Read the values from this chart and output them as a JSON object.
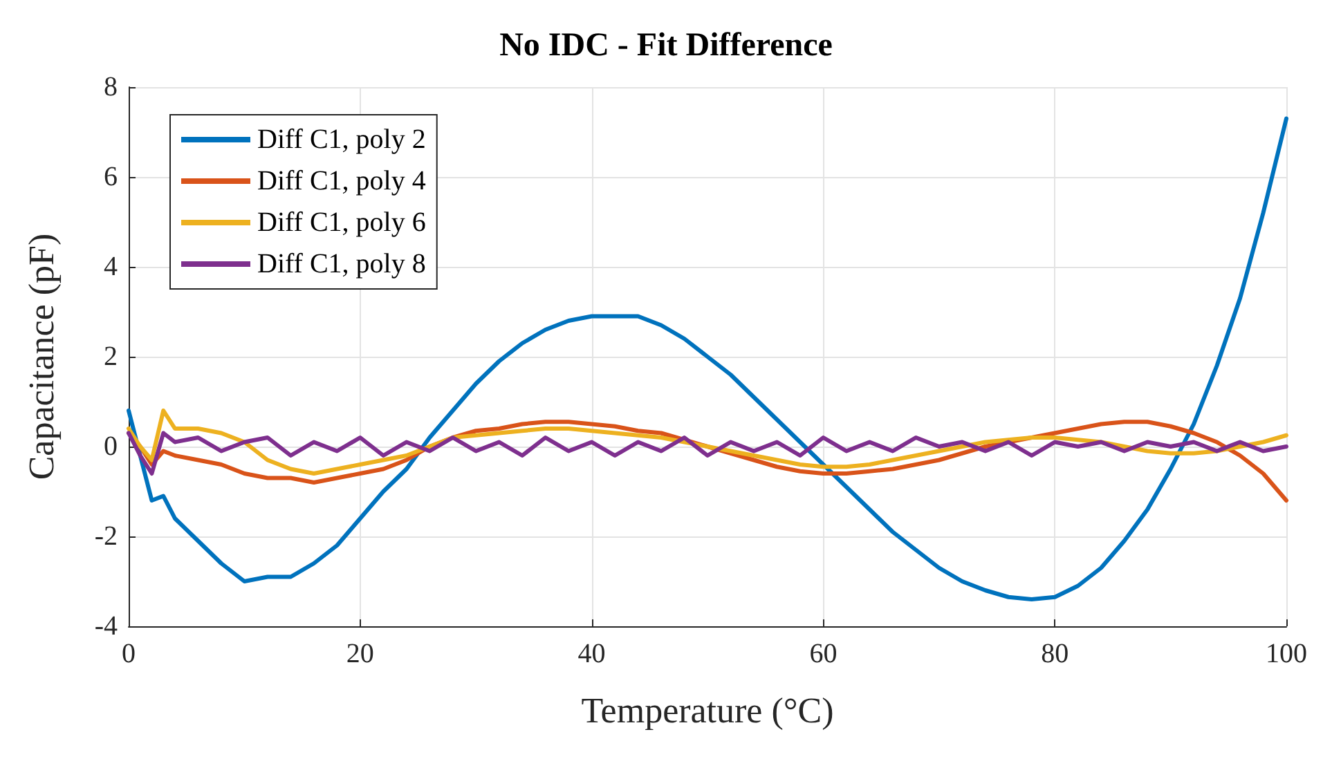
{
  "chart_data": {
    "type": "line",
    "title": "No IDC - Fit Difference",
    "xlabel": "Temperature (°C)",
    "ylabel": "Capacitance (pF)",
    "x": [
      0,
      1,
      2,
      3,
      4,
      6,
      8,
      10,
      12,
      14,
      16,
      18,
      20,
      22,
      24,
      26,
      28,
      30,
      32,
      34,
      36,
      38,
      40,
      42,
      44,
      46,
      48,
      50,
      52,
      54,
      56,
      58,
      60,
      62,
      64,
      66,
      68,
      70,
      72,
      74,
      76,
      78,
      80,
      82,
      84,
      86,
      88,
      90,
      92,
      94,
      96,
      98,
      100
    ],
    "series": [
      {
        "name": "Diff C1, poly 2",
        "color": "#0072bd",
        "values": [
          0.8,
          -0.2,
          -1.2,
          -1.1,
          -1.6,
          -2.1,
          -2.6,
          -3.0,
          -2.9,
          -2.9,
          -2.6,
          -2.2,
          -1.6,
          -1.0,
          -0.5,
          0.2,
          0.8,
          1.4,
          1.9,
          2.3,
          2.6,
          2.8,
          2.9,
          2.9,
          2.9,
          2.7,
          2.4,
          2.0,
          1.6,
          1.1,
          0.6,
          0.1,
          -0.4,
          -0.9,
          -1.4,
          -1.9,
          -2.3,
          -2.7,
          -3.0,
          -3.2,
          -3.35,
          -3.4,
          -3.35,
          -3.1,
          -2.7,
          -2.1,
          -1.4,
          -0.5,
          0.5,
          1.8,
          3.3,
          5.2,
          7.3
        ]
      },
      {
        "name": "Diff C1, poly 4",
        "color": "#d95319",
        "values": [
          0.3,
          0,
          -0.4,
          -0.1,
          -0.2,
          -0.3,
          -0.4,
          -0.6,
          -0.7,
          -0.7,
          -0.8,
          -0.7,
          -0.6,
          -0.5,
          -0.3,
          0,
          0.2,
          0.35,
          0.4,
          0.5,
          0.55,
          0.55,
          0.5,
          0.45,
          0.35,
          0.3,
          0.15,
          0,
          -0.15,
          -0.3,
          -0.45,
          -0.55,
          -0.6,
          -0.6,
          -0.55,
          -0.5,
          -0.4,
          -0.3,
          -0.15,
          0,
          0.1,
          0.2,
          0.3,
          0.4,
          0.5,
          0.55,
          0.55,
          0.45,
          0.3,
          0.1,
          -0.2,
          -0.6,
          -1.2
        ]
      },
      {
        "name": "Diff C1, poly 6",
        "color": "#edb120",
        "values": [
          0.4,
          0,
          -0.3,
          0.8,
          0.4,
          0.4,
          0.3,
          0.1,
          -0.3,
          -0.5,
          -0.6,
          -0.5,
          -0.4,
          -0.3,
          -0.2,
          0,
          0.2,
          0.25,
          0.3,
          0.35,
          0.4,
          0.4,
          0.35,
          0.3,
          0.25,
          0.2,
          0.1,
          0,
          -0.1,
          -0.2,
          -0.3,
          -0.4,
          -0.45,
          -0.45,
          -0.4,
          -0.3,
          -0.2,
          -0.1,
          0,
          0.1,
          0.15,
          0.2,
          0.2,
          0.15,
          0.1,
          0,
          -0.1,
          -0.15,
          -0.15,
          -0.1,
          0,
          0.1,
          0.25
        ]
      },
      {
        "name": "Diff C1, poly 8",
        "color": "#7e2f8e",
        "values": [
          0.3,
          -0.2,
          -0.6,
          0.3,
          0.1,
          0.2,
          -0.1,
          0.1,
          0.2,
          -0.2,
          0.1,
          -0.1,
          0.2,
          -0.2,
          0.1,
          -0.1,
          0.2,
          -0.1,
          0.1,
          -0.2,
          0.2,
          -0.1,
          0.1,
          -0.2,
          0.1,
          -0.1,
          0.2,
          -0.2,
          0.1,
          -0.1,
          0.1,
          -0.2,
          0.2,
          -0.1,
          0.1,
          -0.1,
          0.2,
          0,
          0.1,
          -0.1,
          0.1,
          -0.2,
          0.1,
          0,
          0.1,
          -0.1,
          0.1,
          0,
          0.1,
          -0.1,
          0.1,
          -0.1,
          0
        ]
      }
    ],
    "xlim": [
      0,
      100
    ],
    "xticks": [
      0,
      20,
      40,
      60,
      80,
      100
    ],
    "ylim": [
      -4,
      8
    ],
    "yticks": [
      -4,
      -2,
      0,
      2,
      4,
      6,
      8
    ],
    "grid": true,
    "legend": "top left",
    "marker": "none",
    "line_style": "solid"
  }
}
